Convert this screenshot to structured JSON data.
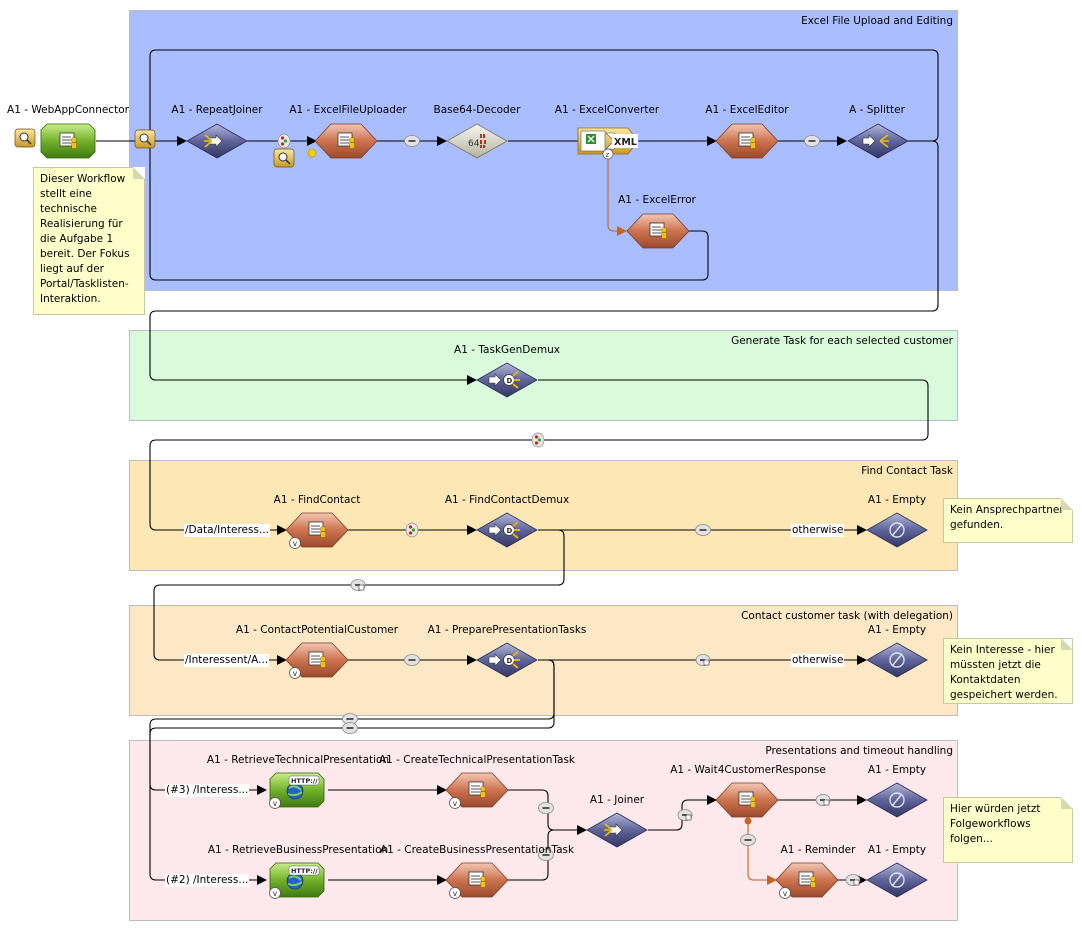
{
  "lanes": [
    {
      "title": "Excel File Upload and Editing",
      "color": "#aabeff"
    },
    {
      "title": "Generate Task for each selected customer",
      "color": "#d9fbdb"
    },
    {
      "title": "Find Contact Task",
      "color": "#fce7b5"
    },
    {
      "title": "Contact customer task (with delegation)",
      "color": "#fce8c4"
    },
    {
      "title": "Presentations and timeout handling",
      "color": "#fde8ec"
    }
  ],
  "nodes": {
    "web_app_connector": "A1 - WebAppConnector",
    "repeat_joiner": "A1 - RepeatJoiner",
    "excel_file_uploader": "A1 - ExcelFileUploader",
    "base64_decoder": "Base64-Decoder",
    "excel_converter": "A1 - ExcelConverter",
    "excel_editor": "A1 - ExcelEditor",
    "splitter": "A - Splitter",
    "excel_error": "A1 - ExcelError",
    "task_gen_demux": "A1 - TaskGenDemux",
    "find_contact": "A1 - FindContact",
    "find_contact_demux": "A1 - FindContactDemux",
    "empty_1": "A1 - Empty",
    "contact_potential_customer": "A1 - ContactPotentialCustomer",
    "prepare_presentation_tasks": "A1 - PreparePresentationTasks",
    "empty_2": "A1 - Empty",
    "retrieve_technical": "A1 - RetrieveTechnicalPresentation",
    "create_technical": "A1 - CreateTechnicalPresentationTask",
    "retrieve_business": "A1 - RetrieveBusinessPresentation",
    "create_business": "A1 - CreateBusinessPresentationTask",
    "joiner": "A1 - Joiner",
    "wait4": "A1 - Wait4CustomerResponse",
    "empty_3": "A1 - Empty",
    "reminder": "A1 - Reminder",
    "empty_4": "A1 - Empty"
  },
  "edge_labels": {
    "data_interest": "/Data/Interess...",
    "otherwise_1": "otherwise",
    "interessent": "/Interessent/A...",
    "otherwise_2": "otherwise",
    "technical_in": "(#3) /Interess...",
    "business_in": "(#2) /Interess..."
  },
  "icons": {
    "xml": "XML",
    "http": "HTTP://",
    "base64": "64",
    "v_badge": "V",
    "d_badge": "D"
  },
  "notes": {
    "workflow": "Dieser Workflow stellt eine technische Realisierung für die Aufgabe 1 bereit. Der Fokus liegt auf der Portal/Tasklisten-Interaktion.",
    "no_contact": "Kein Ansprechpartner gefunden.",
    "no_interest": "Kein Interesse - hier müssten jetzt die Kontaktdaten gespeichert werden.",
    "follow_up": "Hier würden jetzt Folgeworkflows folgen..."
  },
  "colors": {
    "wire": "#000000",
    "error_wire": "#c86420",
    "task": "#c4673f",
    "router": "#4a4f86",
    "connector": "#5a9e1e"
  }
}
